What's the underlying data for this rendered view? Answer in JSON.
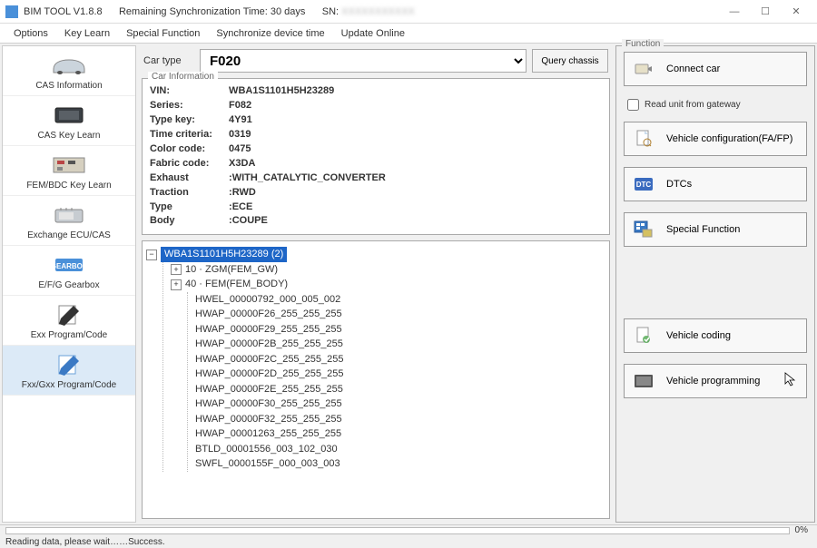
{
  "titlebar": {
    "app": "BIM TOOL V1.8.8",
    "remaining": "Remaining Synchronization Time: 30 days",
    "sn_label": "SN:"
  },
  "menu": [
    "Options",
    "Key Learn",
    "Special Function",
    "Synchronize device time",
    "Update Online"
  ],
  "sidebar": [
    {
      "label": "CAS Information"
    },
    {
      "label": "CAS Key Learn"
    },
    {
      "label": "FEM/BDC Key Learn"
    },
    {
      "label": "Exchange ECU/CAS"
    },
    {
      "label": "E/F/G Gearbox"
    },
    {
      "label": "Exx Program/Code"
    },
    {
      "label": "Fxx/Gxx Program/Code"
    }
  ],
  "car_type": {
    "label": "Car type",
    "value": "F020",
    "query_btn": "Query chassis"
  },
  "car_info": {
    "legend": "Car Information",
    "rows": [
      {
        "k": "VIN:",
        "v": "WBA1S1101H5H23289"
      },
      {
        "k": "Series:",
        "v": "F082"
      },
      {
        "k": "Type key:",
        "v": "4Y91"
      },
      {
        "k": "Time criteria:",
        "v": "0319"
      },
      {
        "k": "Color code:",
        "v": "0475"
      },
      {
        "k": "Fabric code:",
        "v": "X3DA"
      },
      {
        "k": "Exhaust",
        "v": ":WITH_CATALYTIC_CONVERTER"
      },
      {
        "k": "Traction",
        "v": ":RWD"
      },
      {
        "k": "Type",
        "v": ":ECE"
      },
      {
        "k": "Body",
        "v": ":COUPE"
      }
    ]
  },
  "tree": {
    "root": "WBA1S1101H5H23289 (2)",
    "children": [
      {
        "exp": "+",
        "label": "10 · ZGM(FEM_GW)"
      },
      {
        "exp": "+",
        "label": "40 · FEM(FEM_BODY)"
      }
    ],
    "leaves": [
      "HWEL_00000792_000_005_002",
      "HWAP_00000F26_255_255_255",
      "HWAP_00000F29_255_255_255",
      "HWAP_00000F2B_255_255_255",
      "HWAP_00000F2C_255_255_255",
      "HWAP_00000F2D_255_255_255",
      "HWAP_00000F2E_255_255_255",
      "HWAP_00000F30_255_255_255",
      "HWAP_00000F32_255_255_255",
      "HWAP_00001263_255_255_255",
      "BTLD_00001556_003_102_030",
      "SWFL_0000155F_000_003_003"
    ]
  },
  "function": {
    "legend": "Function",
    "connect": "Connect car",
    "read_chk": "Read unit from gateway",
    "config": "Vehicle configuration(FA/FP)",
    "dtcs": "DTCs",
    "special": "Special Function",
    "coding": "Vehicle coding",
    "programming": "Vehicle programming"
  },
  "progress": {
    "pct": "0%"
  },
  "status": "Reading data, please wait……Success.",
  "colors": {
    "accent": "#1e66c7",
    "border": "#aaa",
    "bg": "#f0f0f0"
  }
}
